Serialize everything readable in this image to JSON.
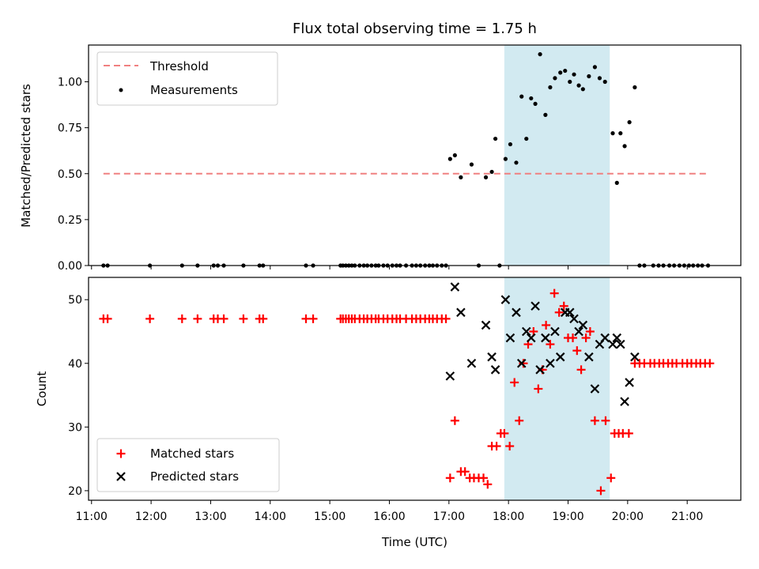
{
  "chart_data": [
    {
      "type": "scatter",
      "title": "Flux total observing time = 1.75 h",
      "xlabel": "",
      "ylabel": "Matched/Predicted stars",
      "xlim": [
        10.95,
        21.9
      ],
      "ylim": [
        0.0,
        1.2
      ],
      "yticks": [
        0.0,
        0.25,
        0.5,
        0.75,
        1.0
      ],
      "ytick_labels": [
        "0.00",
        "0.25",
        "0.50",
        "0.75",
        "1.00"
      ],
      "grid": false,
      "legend_position": "top-left",
      "shaded_span": [
        17.93,
        19.7
      ],
      "shaded_color": "#add8e6",
      "threshold": {
        "name": "Threshold",
        "y": 0.5,
        "x_range": [
          11.2,
          21.35
        ],
        "color": "#f08080"
      },
      "series": [
        {
          "name": "Measurements",
          "marker": "dot",
          "color": "#000000",
          "x": [
            11.2,
            11.27,
            11.98,
            12.52,
            12.78,
            13.05,
            13.12,
            13.22,
            13.55,
            13.82,
            13.88,
            14.6,
            14.72,
            15.18,
            15.22,
            15.27,
            15.32,
            15.37,
            15.42,
            15.5,
            15.57,
            15.63,
            15.7,
            15.77,
            15.82,
            15.9,
            15.97,
            16.05,
            16.12,
            16.18,
            16.28,
            16.38,
            16.45,
            16.52,
            16.6,
            16.67,
            16.73,
            16.8,
            16.88,
            16.95,
            17.02,
            17.1,
            17.2,
            17.38,
            17.5,
            17.62,
            17.72,
            17.78,
            17.85,
            17.95,
            18.03,
            18.13,
            18.22,
            18.3,
            18.38,
            18.45,
            18.53,
            18.62,
            18.7,
            18.78,
            18.87,
            18.95,
            19.03,
            19.1,
            19.18,
            19.25,
            19.35,
            19.45,
            19.53,
            19.62,
            19.75,
            19.82,
            19.88,
            19.95,
            20.03,
            20.12,
            20.2,
            20.28,
            20.43,
            20.52,
            20.6,
            20.7,
            20.78,
            20.87,
            20.95,
            21.03,
            21.1,
            21.18,
            21.25,
            21.35
          ],
          "y": [
            0,
            0,
            0,
            0,
            0,
            0,
            0,
            0,
            0,
            0,
            0,
            0,
            0,
            0,
            0,
            0,
            0,
            0,
            0,
            0,
            0,
            0,
            0,
            0,
            0,
            0,
            0,
            0,
            0,
            0,
            0,
            0,
            0,
            0,
            0,
            0,
            0,
            0,
            0,
            0,
            0.58,
            0.6,
            0.48,
            0.55,
            0,
            0.48,
            0.51,
            0.69,
            0,
            0.58,
            0.66,
            0.56,
            0.92,
            0.69,
            0.91,
            0.88,
            1.15,
            0.82,
            0.97,
            1.02,
            1.05,
            1.06,
            1.0,
            1.04,
            0.98,
            0.96,
            1.03,
            1.08,
            1.02,
            1.0,
            0.72,
            0.45,
            0.72,
            0.65,
            0.78,
            0.97,
            0,
            0,
            0,
            0,
            0,
            0,
            0,
            0,
            0,
            0,
            0,
            0,
            0,
            0
          ]
        }
      ]
    },
    {
      "type": "scatter",
      "title": "",
      "xlabel": "Time (UTC)",
      "ylabel": "Count",
      "xlim": [
        10.95,
        21.9
      ],
      "ylim": [
        18.5,
        53.5
      ],
      "yticks": [
        20,
        30,
        40,
        50
      ],
      "xticks": [
        11,
        12,
        13,
        14,
        15,
        16,
        17,
        18,
        19,
        20,
        21
      ],
      "xtick_labels": [
        "11:00",
        "12:00",
        "13:00",
        "14:00",
        "15:00",
        "16:00",
        "17:00",
        "18:00",
        "19:00",
        "20:00",
        "21:00"
      ],
      "grid": false,
      "legend_position": "bottom-left",
      "shaded_span": [
        17.93,
        19.7
      ],
      "shaded_color": "#add8e6",
      "series": [
        {
          "name": "Matched stars",
          "marker": "plus",
          "color": "#ff0000",
          "x": [
            11.2,
            11.27,
            11.98,
            12.52,
            12.78,
            13.05,
            13.12,
            13.22,
            13.55,
            13.82,
            13.88,
            14.6,
            14.72,
            15.18,
            15.22,
            15.27,
            15.32,
            15.37,
            15.42,
            15.5,
            15.57,
            15.63,
            15.7,
            15.77,
            15.82,
            15.9,
            15.97,
            16.05,
            16.12,
            16.18,
            16.28,
            16.38,
            16.45,
            16.52,
            16.6,
            16.67,
            16.73,
            16.8,
            16.88,
            16.95,
            17.02,
            17.1,
            17.2,
            17.27,
            17.35,
            17.42,
            17.5,
            17.58,
            17.65,
            17.72,
            17.8,
            17.87,
            17.93,
            18.02,
            18.1,
            18.18,
            18.25,
            18.33,
            18.42,
            18.5,
            18.57,
            18.63,
            18.7,
            18.77,
            18.85,
            18.93,
            19.0,
            19.08,
            19.15,
            19.22,
            19.3,
            19.37,
            19.45,
            19.55,
            19.63,
            19.72,
            19.78,
            19.85,
            19.92,
            20.02,
            20.12,
            20.2,
            20.28,
            20.38,
            20.45,
            20.53,
            20.6,
            20.68,
            20.75,
            20.82,
            20.92,
            21.0,
            21.07,
            21.15,
            21.22,
            21.3,
            21.38
          ],
          "y": [
            47,
            47,
            47,
            47,
            47,
            47,
            47,
            47,
            47,
            47,
            47,
            47,
            47,
            47,
            47,
            47,
            47,
            47,
            47,
            47,
            47,
            47,
            47,
            47,
            47,
            47,
            47,
            47,
            47,
            47,
            47,
            47,
            47,
            47,
            47,
            47,
            47,
            47,
            47,
            47,
            22,
            31,
            23,
            23,
            22,
            22,
            22,
            22,
            21,
            27,
            27,
            29,
            29,
            27,
            37,
            31,
            40,
            43,
            45,
            36,
            39,
            46,
            43,
            51,
            48,
            49,
            44,
            44,
            42,
            39,
            44,
            45,
            31,
            20,
            31,
            22,
            29,
            29,
            29,
            29,
            40,
            40,
            40,
            40,
            40,
            40,
            40,
            40,
            40,
            40,
            40,
            40,
            40,
            40,
            40,
            40,
            40
          ]
        },
        {
          "name": "Predicted stars",
          "marker": "x",
          "color": "#000000",
          "x": [
            17.02,
            17.1,
            17.2,
            17.38,
            17.62,
            17.72,
            17.78,
            17.95,
            18.03,
            18.13,
            18.22,
            18.3,
            18.38,
            18.45,
            18.53,
            18.62,
            18.7,
            18.78,
            18.87,
            18.95,
            19.03,
            19.1,
            19.18,
            19.25,
            19.35,
            19.45,
            19.53,
            19.62,
            19.75,
            19.82,
            19.88,
            19.95,
            20.03,
            20.12
          ],
          "y": [
            38,
            52,
            48,
            40,
            46,
            41,
            39,
            50,
            44,
            48,
            40,
            45,
            44,
            49,
            39,
            44,
            40,
            45,
            41,
            48,
            48,
            47,
            45,
            46,
            41,
            36,
            43,
            44,
            43,
            44,
            43,
            34,
            37,
            41
          ]
        }
      ]
    }
  ]
}
